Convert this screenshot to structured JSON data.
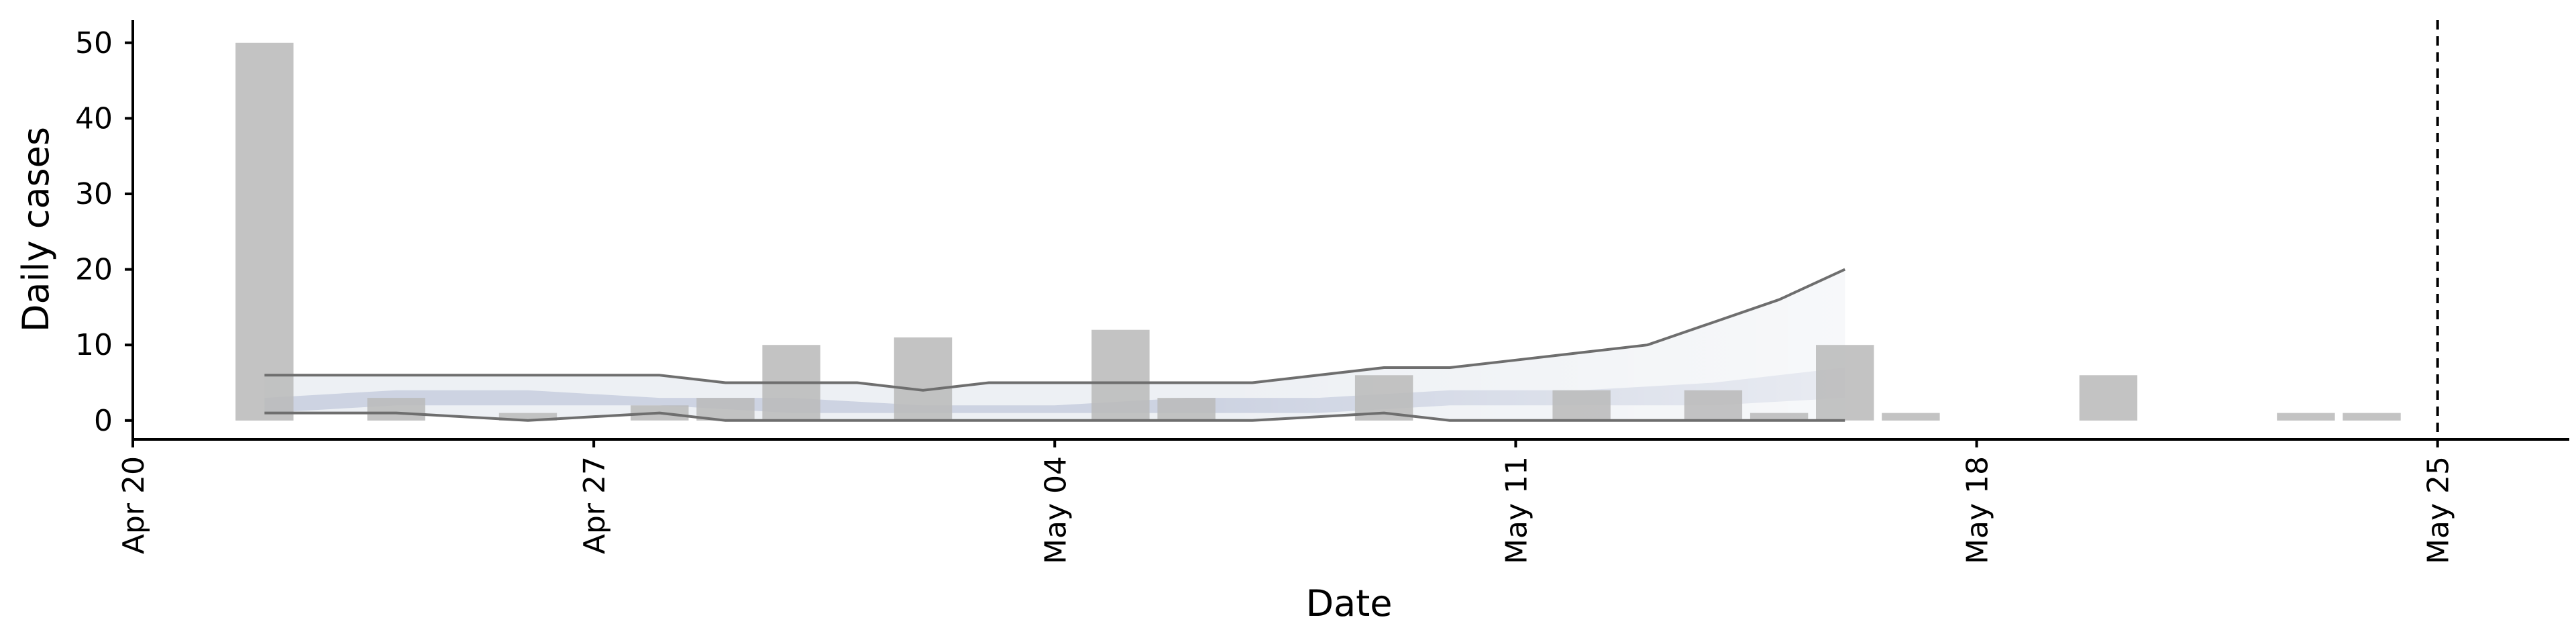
{
  "chart_data": {
    "type": "bar",
    "xlabel": "Date",
    "ylabel": "Daily cases",
    "x_ticks": [
      {
        "date": "2020-04-20",
        "label": "Apr 20"
      },
      {
        "date": "2020-04-27",
        "label": "Apr 27"
      },
      {
        "date": "2020-05-04",
        "label": "May 04"
      },
      {
        "date": "2020-05-11",
        "label": "May 11"
      },
      {
        "date": "2020-05-18",
        "label": "May 18"
      },
      {
        "date": "2020-05-25",
        "label": "May 25"
      }
    ],
    "y_ticks": [
      0,
      10,
      20,
      30,
      40,
      50
    ],
    "xlim": [
      "2020-04-20",
      "2020-05-27"
    ],
    "ylim": [
      -2.5,
      53
    ],
    "grid": false,
    "bars": {
      "color": "#bbbbbb",
      "x": [
        "2020-04-22",
        "2020-04-24",
        "2020-04-26",
        "2020-04-28",
        "2020-04-29",
        "2020-04-30",
        "2020-05-02",
        "2020-05-05",
        "2020-05-06",
        "2020-05-09",
        "2020-05-12",
        "2020-05-14",
        "2020-05-15",
        "2020-05-16",
        "2020-05-17",
        "2020-05-20",
        "2020-05-23",
        "2020-05-24"
      ],
      "values": [
        50,
        3,
        1,
        2,
        3,
        10,
        11,
        12,
        3,
        6,
        4,
        4,
        1,
        10,
        1,
        6,
        1,
        1
      ]
    },
    "outer_band": {
      "color": "#e6e9f0",
      "x": [
        "2020-04-22",
        "2020-04-24",
        "2020-04-26",
        "2020-04-28",
        "2020-04-29",
        "2020-04-30",
        "2020-05-01",
        "2020-05-02",
        "2020-05-03",
        "2020-05-05",
        "2020-05-07",
        "2020-05-09",
        "2020-05-10",
        "2020-05-11",
        "2020-05-12",
        "2020-05-13",
        "2020-05-14",
        "2020-05-15",
        "2020-05-16"
      ],
      "upper": [
        6,
        6,
        6,
        6,
        5,
        5,
        5,
        4,
        5,
        5,
        5,
        7,
        7,
        8,
        9,
        10,
        13,
        16,
        20
      ],
      "lower": [
        1,
        1,
        0,
        1,
        0,
        0,
        0,
        0,
        0,
        0,
        0,
        1,
        0,
        0,
        0,
        0,
        0,
        0,
        0
      ]
    },
    "inner_band": {
      "color": "#c2c9dc",
      "x": [
        "2020-04-22",
        "2020-04-24",
        "2020-04-26",
        "2020-04-28",
        "2020-04-30",
        "2020-05-02",
        "2020-05-04",
        "2020-05-06",
        "2020-05-08",
        "2020-05-10",
        "2020-05-12",
        "2020-05-14",
        "2020-05-16"
      ],
      "upper": [
        3,
        4,
        4,
        3,
        3,
        2,
        2,
        3,
        3,
        4,
        4,
        5,
        7
      ],
      "lower": [
        1,
        2,
        2,
        2,
        1,
        1,
        1,
        1,
        1,
        2,
        2,
        2,
        3
      ]
    },
    "vline": {
      "x": "2020-05-25",
      "style": "dashed",
      "color": "#000000"
    }
  }
}
